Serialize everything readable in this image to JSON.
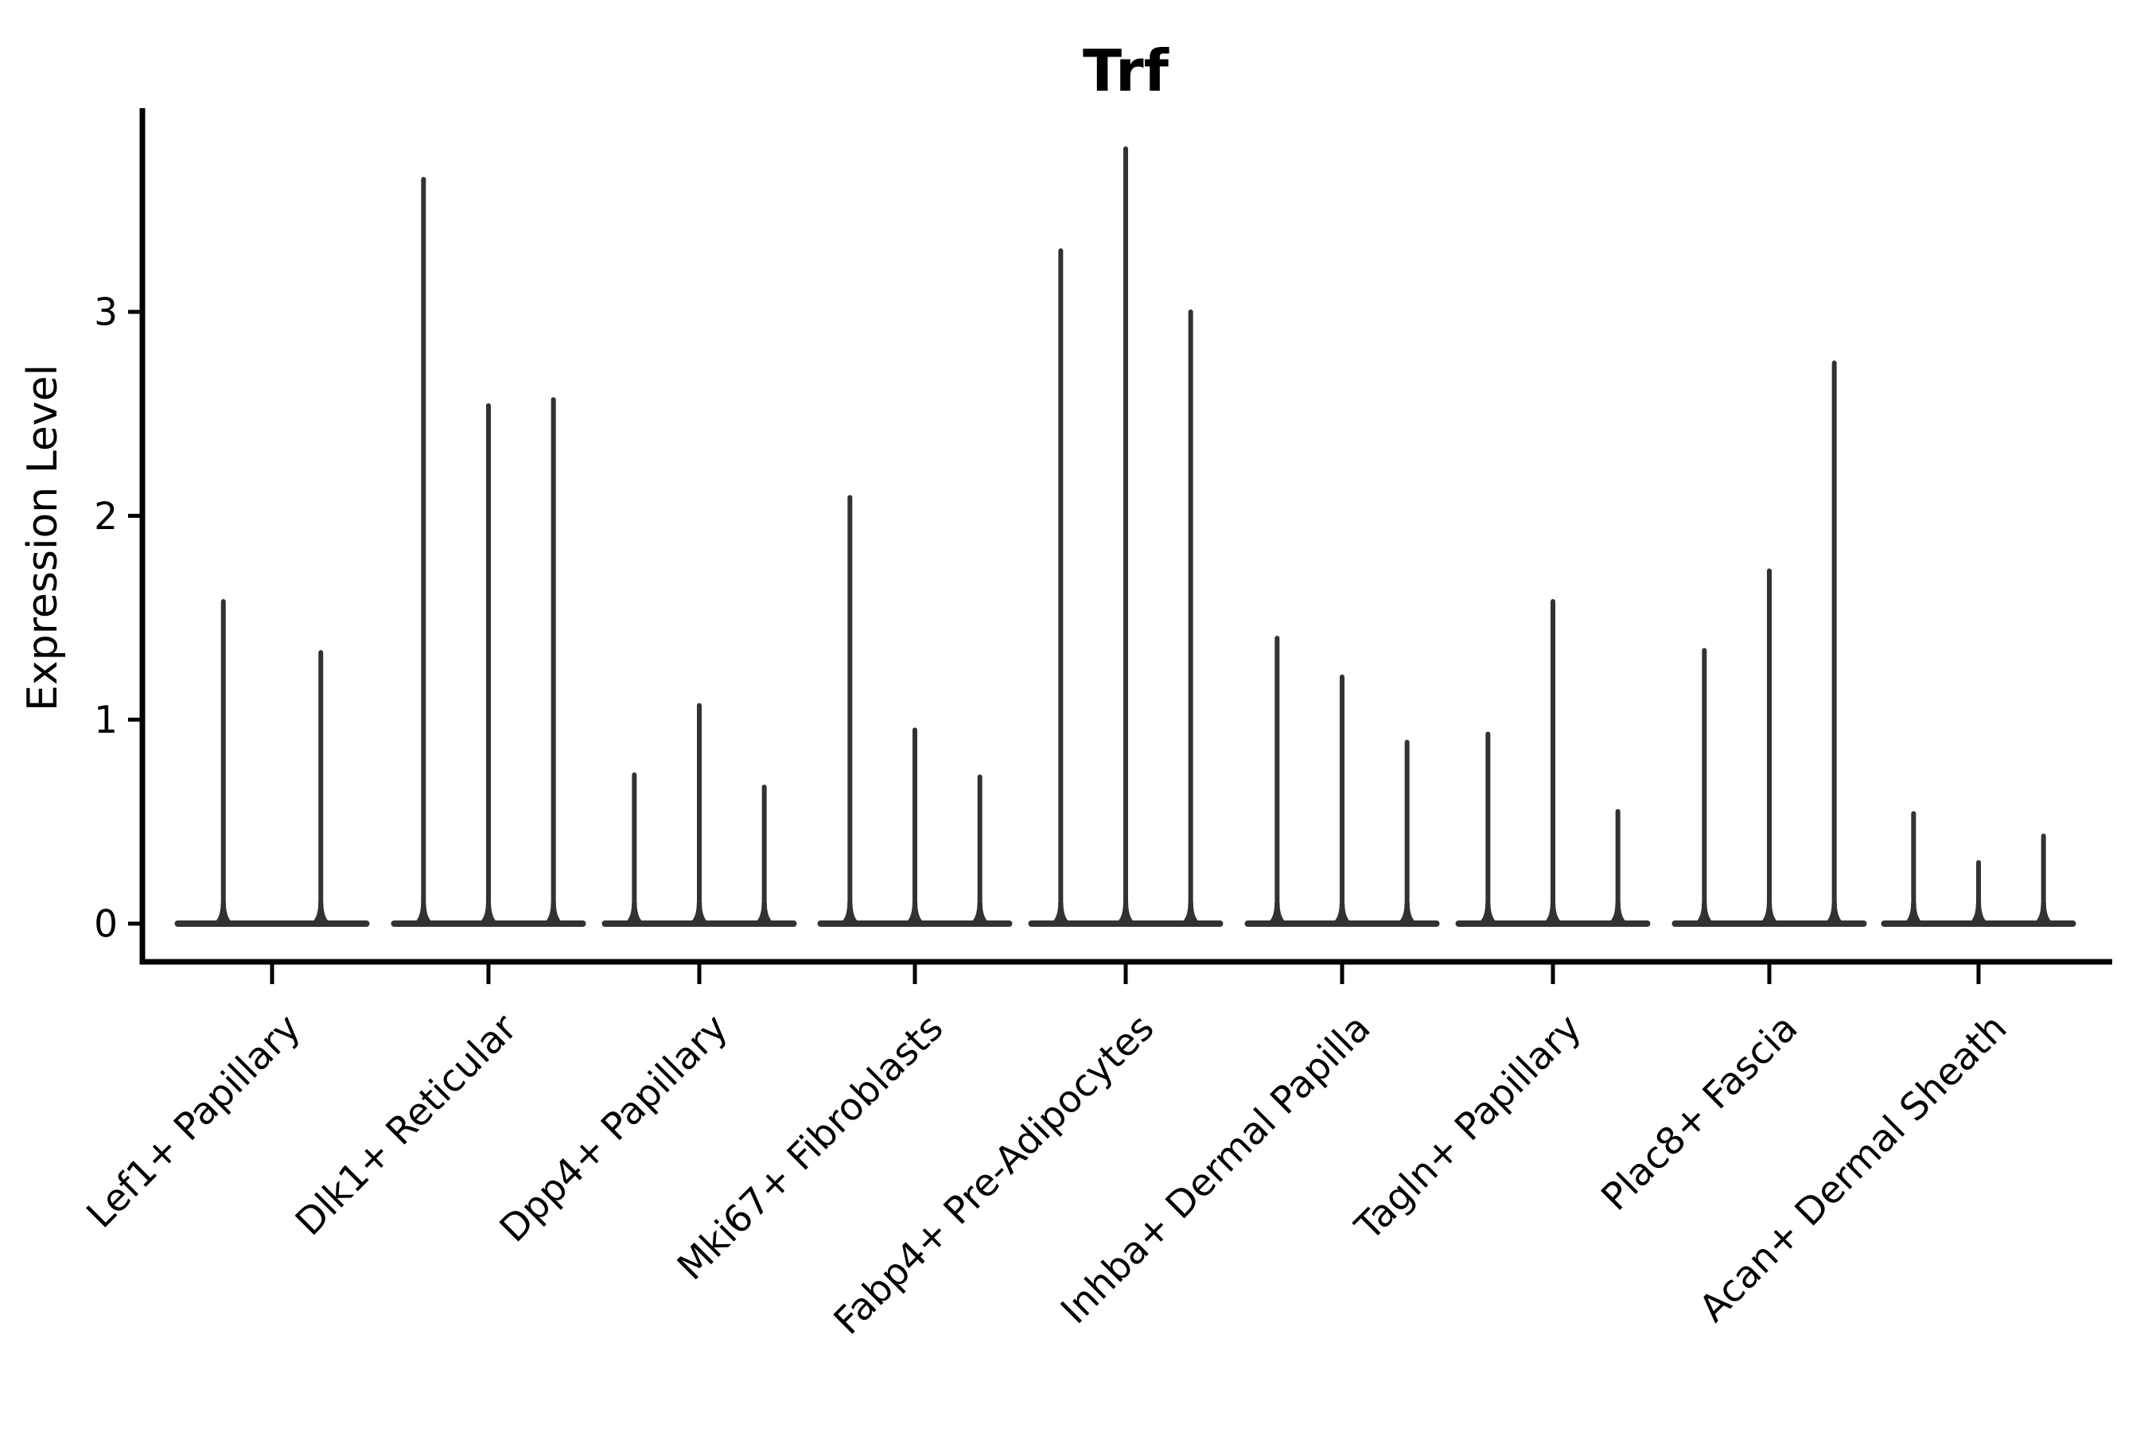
{
  "title": "Trf",
  "y_axis": {
    "label": "Expression Level",
    "tick_labels": [
      "0",
      "1",
      "2",
      "3"
    ]
  },
  "colors": {
    "violin": "#323232",
    "axis": "#000000",
    "text": "#000000",
    "background": "#ffffff"
  },
  "chart_data": {
    "type": "violin",
    "title": "Trf",
    "ylabel": "Expression Level",
    "xlabel": "",
    "yticks": [
      0,
      1,
      2,
      3
    ],
    "ylim": [
      -0.19,
      4.0
    ],
    "grid": false,
    "legend": "none",
    "style": "sparse scRNA-seq violins: wide flat base at 0 with thin needle-like spikes up to the max expression value; 2-3 violins per category",
    "categories": [
      "Lef1+ Papillary",
      "Dlk1+ Reticular",
      "Dpp4+ Papillary",
      "Mki67+ Fibroblasts",
      "Fabp4+ Pre-Adipocytes",
      "Inhba+ Dermal Papilla",
      "Tagln+ Papillary",
      "Plac8+ Fascia",
      "Acan+ Dermal Sheath"
    ],
    "series": [
      {
        "category": "Lef1+ Papillary",
        "violin_peaks": [
          1.58,
          1.33
        ]
      },
      {
        "category": "Dlk1+ Reticular",
        "violin_peaks": [
          3.65,
          2.54,
          2.57
        ]
      },
      {
        "category": "Dpp4+ Papillary",
        "violin_peaks": [
          0.73,
          1.07,
          0.67
        ]
      },
      {
        "category": "Mki67+ Fibroblasts",
        "violin_peaks": [
          2.09,
          0.95,
          0.72
        ]
      },
      {
        "category": "Fabp4+ Pre-Adipocytes",
        "violin_peaks": [
          3.3,
          3.8,
          3.0
        ]
      },
      {
        "category": "Inhba+ Dermal Papilla",
        "violin_peaks": [
          1.4,
          1.21,
          0.89
        ]
      },
      {
        "category": "Tagln+ Papillary",
        "violin_peaks": [
          0.93,
          1.58,
          0.55
        ]
      },
      {
        "category": "Plac8+ Fascia",
        "violin_peaks": [
          1.34,
          1.73,
          2.75
        ]
      },
      {
        "category": "Acan+ Dermal Sheath",
        "violin_peaks": [
          0.54,
          0.3,
          0.43
        ]
      }
    ]
  }
}
